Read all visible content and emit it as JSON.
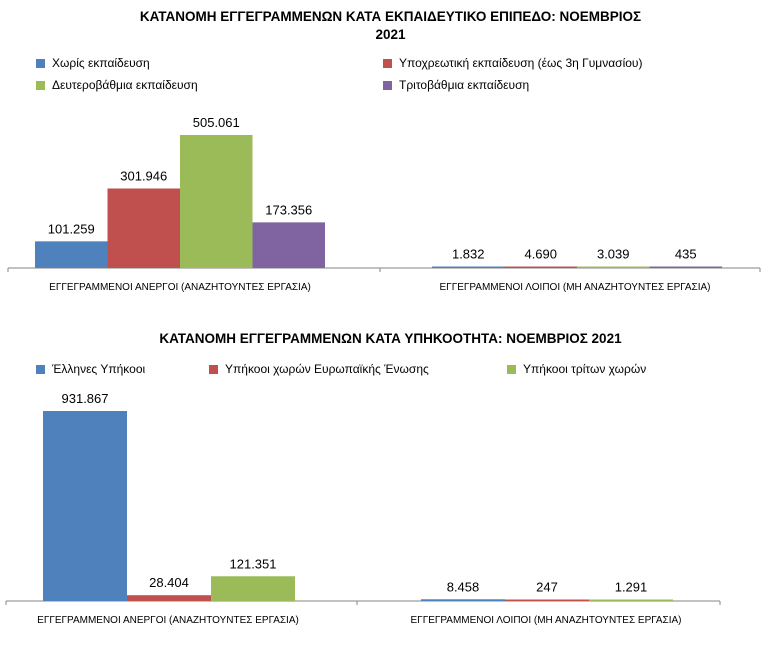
{
  "charts": [
    {
      "title_line1": "ΚΑΤΑΝΟΜΗ ΕΓΓΕΓΡΑΜΜΕΝΩΝ ΚΑΤΑ ΕΚΠΑΙΔΕΥΤΙΚΟ ΕΠΙΠΕΔΟ: ΝΟΕΜΒΡΙΟΣ",
      "title_line2": "2021",
      "legend": [
        "Χωρίς εκπαίδευση",
        "Υποχρεωτική εκπαίδευση (έως 3η Γυμνασίου)",
        "Δευτεροβάθμια εκπαίδευση",
        "Τριτοβάθμια εκπαίδευση"
      ]
    },
    {
      "title_line1": "ΚΑΤΑΝΟΜΗ ΕΓΓΕΓΡΑΜΜΕΝΩΝ ΚΑΤΑ ΥΠΗΚΟΟΤΗΤΑ: ΝΟΕΜΒΡΙΟΣ 2021",
      "legend": [
        "Έλληνες Υπήκοοι",
        "Υπήκοοι χωρών Ευρωπαϊκής Ένωσης",
        "Υπήκοοι τρίτων χωρών"
      ]
    }
  ],
  "chart_data": [
    {
      "type": "bar",
      "title": "ΚΑΤΑΝΟΜΗ ΕΓΓΕΓΡΑΜΜΕΝΩΝ ΚΑΤΑ ΕΚΠΑΙΔΕΥΤΙΚΟ ΕΠΙΠΕΔΟ: ΝΟΕΜΒΡΙΟΣ 2021",
      "categories": [
        "ΕΓΓΕΓΡΑΜΜΕΝΟΙ ΑΝΕΡΓΟΙ (ΑΝΑΖΗΤΟΥΝΤΕΣ ΕΡΓΑΣΙΑ)",
        "ΕΓΓΕΓΡΑΜΜΕΝΟΙ ΛΟΙΠΟΙ (ΜΗ ΑΝΑΖΗΤΟΥΝΤΕΣ ΕΡΓΑΣΙΑ)"
      ],
      "series": [
        {
          "name": "Χωρίς εκπαίδευση",
          "values": [
            101259,
            1832
          ],
          "labels": [
            "101.259",
            "1.832"
          ],
          "color": "#4F81BD"
        },
        {
          "name": "Υποχρεωτική εκπαίδευση (έως 3η Γυμνασίου)",
          "values": [
            301946,
            4690
          ],
          "labels": [
            "301.946",
            "4.690"
          ],
          "color": "#C0504D"
        },
        {
          "name": "Δευτεροβάθμια εκπαίδευση",
          "values": [
            505061,
            3039
          ],
          "labels": [
            "505.061",
            "3.039"
          ],
          "color": "#9BBB59"
        },
        {
          "name": "Τριτοβάθμια εκπαίδευση",
          "values": [
            173356,
            435
          ],
          "labels": [
            "173.356",
            "435"
          ],
          "color": "#8064A2"
        }
      ],
      "ylim": [
        0,
        505061
      ],
      "grid": false,
      "legend_position": "top"
    },
    {
      "type": "bar",
      "title": "ΚΑΤΑΝΟΜΗ ΕΓΓΕΓΡΑΜΜΕΝΩΝ ΚΑΤΑ ΥΠΗΚΟΟΤΗΤΑ: ΝΟΕΜΒΡΙΟΣ 2021",
      "categories": [
        "ΕΓΓΕΓΡΑΜΜΕΝΟΙ ΑΝΕΡΓΟΙ (ΑΝΑΖΗΤΟΥΝΤΕΣ ΕΡΓΑΣΙΑ)",
        "ΕΓΓΕΓΡΑΜΜΕΝΟΙ ΛΟΙΠΟΙ (ΜΗ ΑΝΑΖΗΤΟΥΝΤΕΣ ΕΡΓΑΣΙΑ)"
      ],
      "series": [
        {
          "name": "Έλληνες Υπήκοοι",
          "values": [
            931867,
            8458
          ],
          "labels": [
            "931.867",
            "8.458"
          ],
          "color": "#4F81BD"
        },
        {
          "name": "Υπήκοοι χωρών Ευρωπαϊκής Ένωσης",
          "values": [
            28404,
            247
          ],
          "labels": [
            "28.404",
            "247"
          ],
          "color": "#C0504D"
        },
        {
          "name": "Υπήκοοι τρίτων χωρών",
          "values": [
            121351,
            1291
          ],
          "labels": [
            "121.351",
            "1.291"
          ],
          "color": "#9BBB59"
        }
      ],
      "ylim": [
        0,
        931867
      ],
      "grid": false,
      "legend_position": "top"
    }
  ]
}
